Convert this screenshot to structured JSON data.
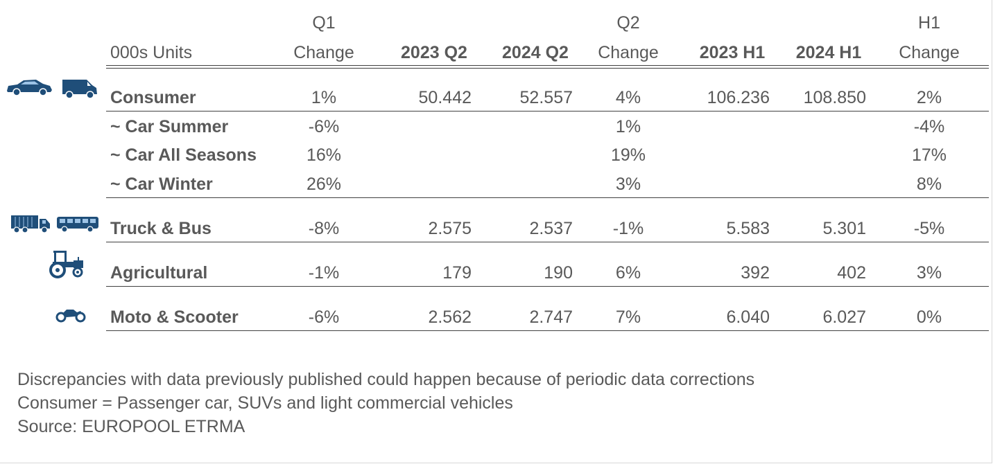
{
  "chart_data": {
    "type": "table",
    "unit_label": "000s Units",
    "header_row1": {
      "q1": "Q1",
      "q2": "Q2",
      "h1": "H1"
    },
    "header_row2": {
      "q1_change": "Change",
      "y2023_q2": "2023 Q2",
      "y2024_q2": "2024 Q2",
      "q2_change": "Change",
      "y2023_h1": "2023 H1",
      "y2024_h1": "2024 H1",
      "h1_change": "Change"
    },
    "rows": [
      {
        "label": "Consumer",
        "q1_change": "1%",
        "y2023_q2": "50.442",
        "y2024_q2": "52.557",
        "q2_change": "4%",
        "y2023_h1": "106.236",
        "y2024_h1": "108.850",
        "h1_change": "2%"
      },
      {
        "label": "~ Car Summer",
        "q1_change": "-6%",
        "y2023_q2": "",
        "y2024_q2": "",
        "q2_change": "1%",
        "y2023_h1": "",
        "y2024_h1": "",
        "h1_change": "-4%"
      },
      {
        "label": "~ Car All Seasons",
        "q1_change": "16%",
        "y2023_q2": "",
        "y2024_q2": "",
        "q2_change": "19%",
        "y2023_h1": "",
        "y2024_h1": "",
        "h1_change": "17%"
      },
      {
        "label": "~ Car Winter",
        "q1_change": "26%",
        "y2023_q2": "",
        "y2024_q2": "",
        "q2_change": "3%",
        "y2023_h1": "",
        "y2024_h1": "",
        "h1_change": "8%"
      },
      {
        "label": "Truck & Bus",
        "q1_change": "-8%",
        "y2023_q2": "2.575",
        "y2024_q2": "2.537",
        "q2_change": "-1%",
        "y2023_h1": "5.583",
        "y2024_h1": "5.301",
        "h1_change": "-5%"
      },
      {
        "label": "Agricultural",
        "q1_change": "-1%",
        "y2023_q2": "179",
        "y2024_q2": "190",
        "q2_change": "6%",
        "y2023_h1": "392",
        "y2024_h1": "402",
        "h1_change": "3%"
      },
      {
        "label": "Moto & Scooter",
        "q1_change": "-6%",
        "y2023_q2": "2.562",
        "y2024_q2": "2.747",
        "q2_change": "7%",
        "y2023_h1": "6.040",
        "y2024_h1": "6.027",
        "h1_change": "0%"
      }
    ]
  },
  "footer": {
    "line1": "Discrepancies with data previously published could happen because of periodic data corrections",
    "line2": "Consumer = Passenger car, SUVs and light commercial vehicles",
    "line3": "Source: EUROPOOL ETRMA"
  },
  "icons": [
    "car-icon",
    "van-icon",
    "truck-icon",
    "bus-icon",
    "tractor-icon",
    "motorcycle-icon"
  ],
  "colors": {
    "text": "#595959",
    "icon": "#1f4e79",
    "rule": "#404040"
  }
}
